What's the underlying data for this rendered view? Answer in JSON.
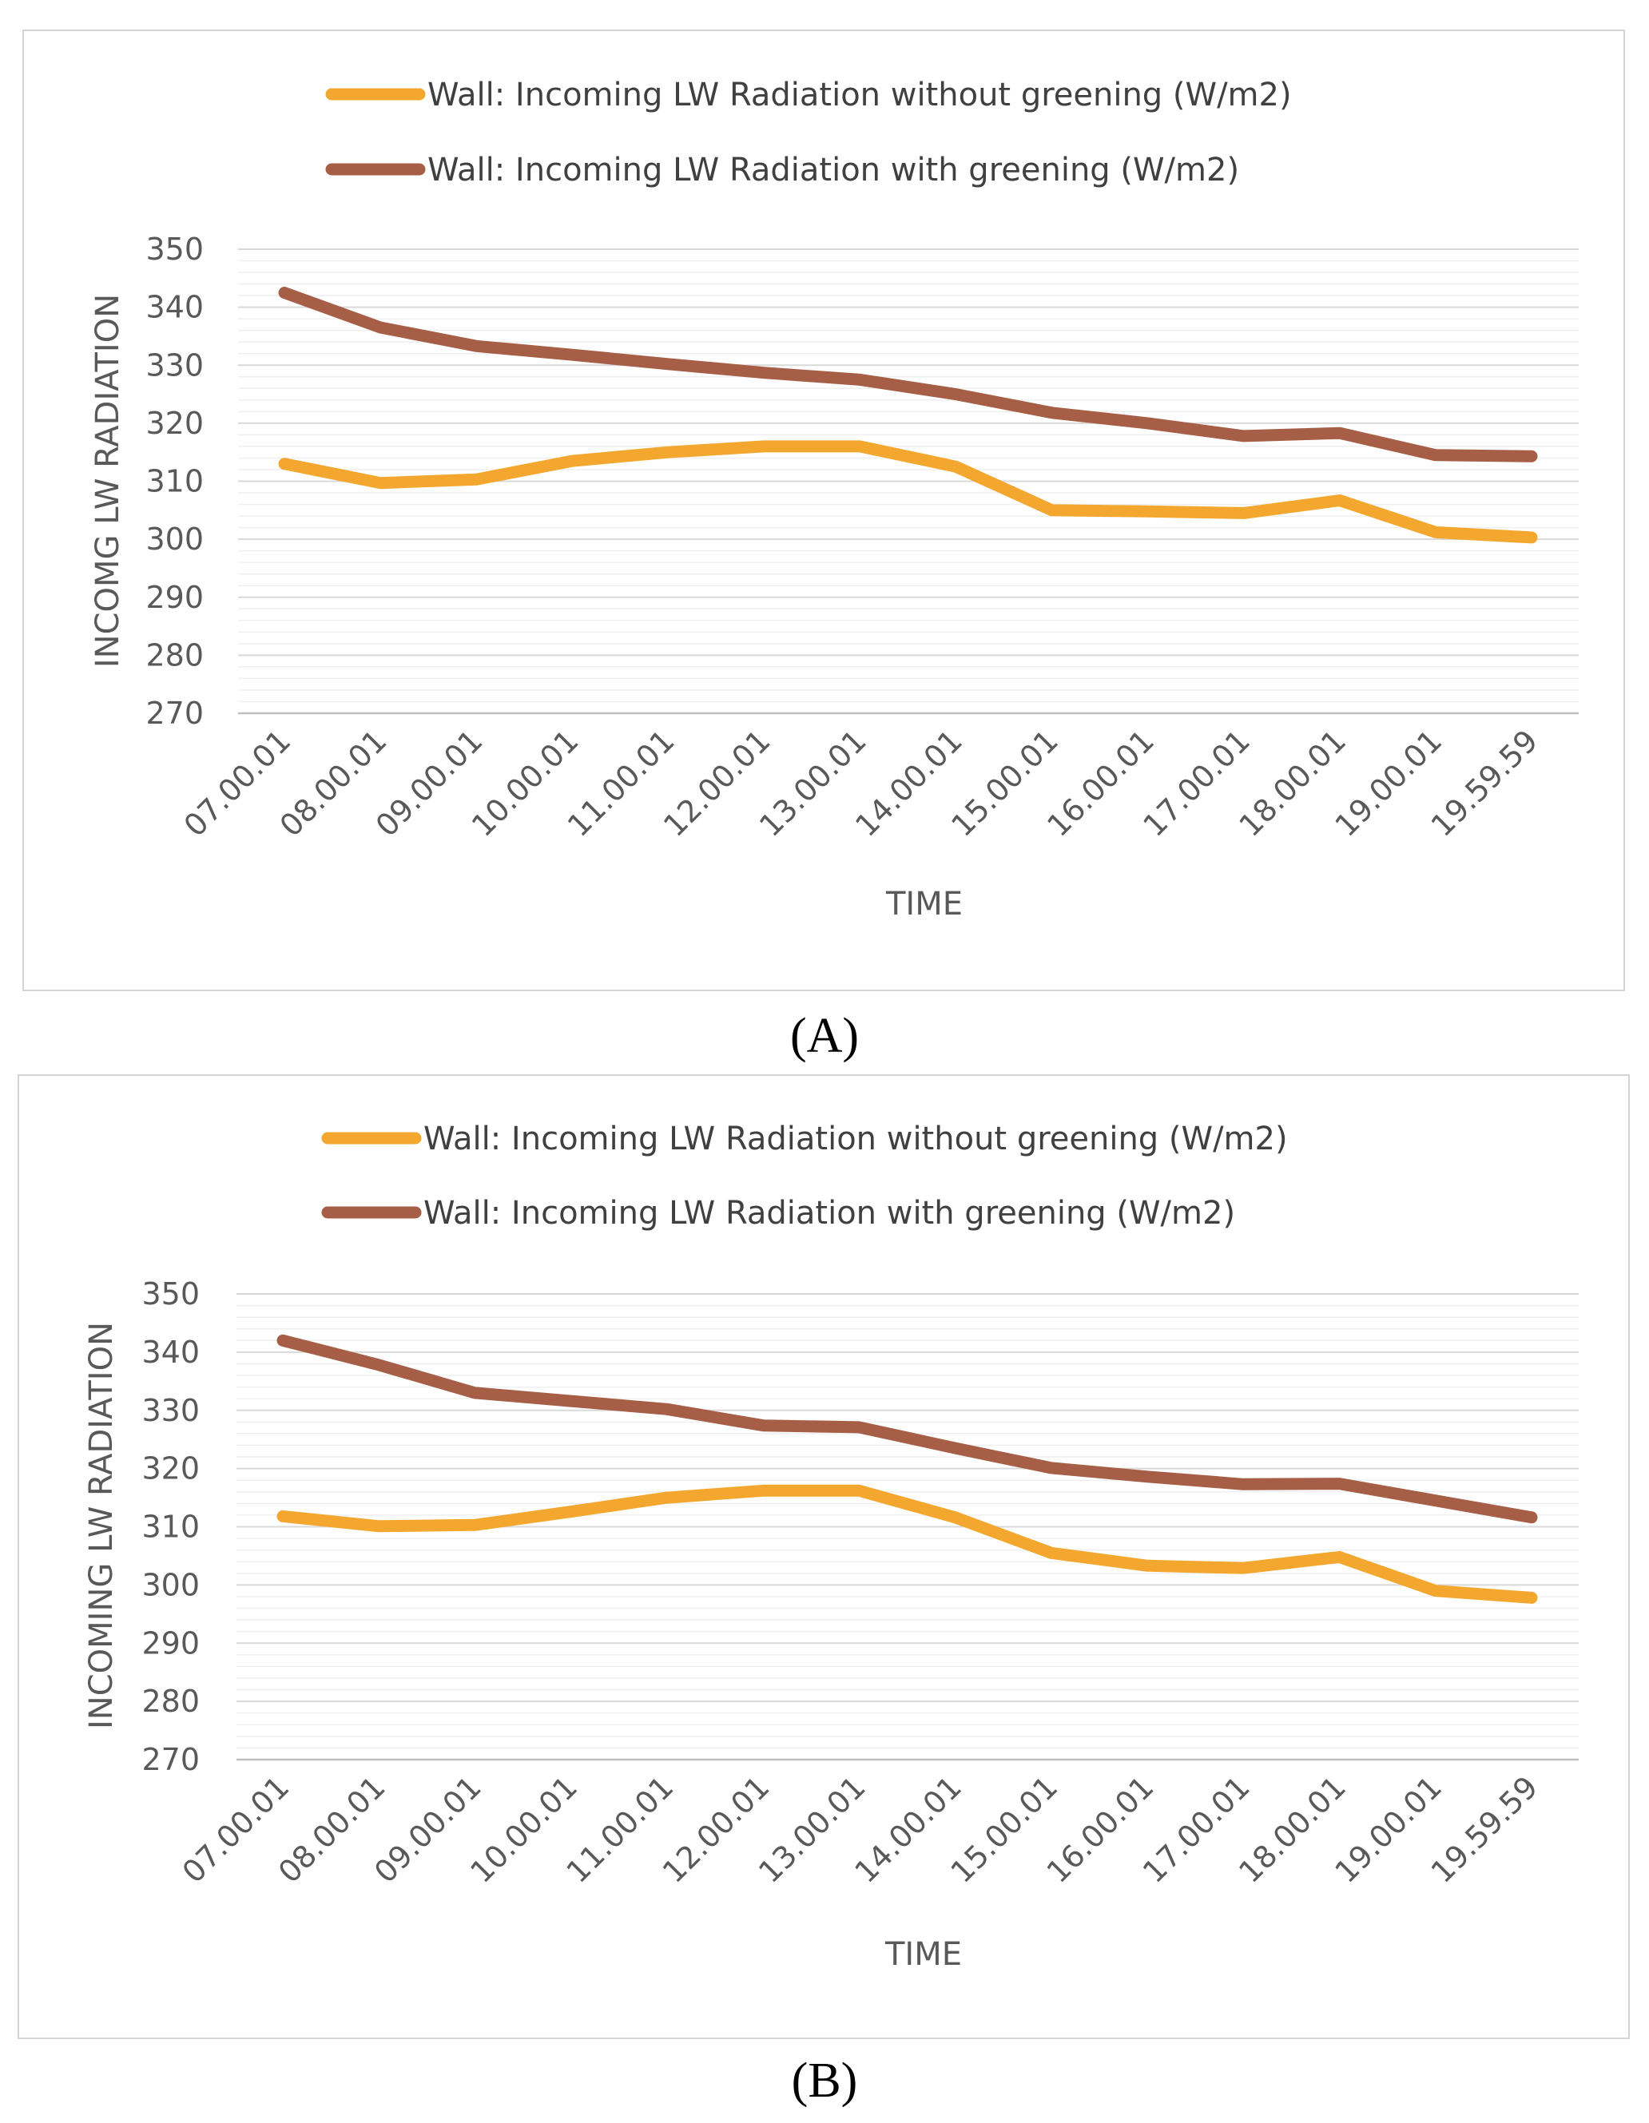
{
  "chart_data": [
    {
      "type": "line",
      "panel_label": "(A)",
      "xlabel": "TIME",
      "ylabel": "INCOMG LW RADIATION",
      "ylim": [
        270,
        350
      ],
      "yticks": [
        270,
        280,
        290,
        300,
        310,
        320,
        330,
        340,
        350
      ],
      "grid": true,
      "legend_position": "top",
      "categories": [
        "07.00.01",
        "08.00.01",
        "09.00.01",
        "10.00.01",
        "11.00.01",
        "12.00.01",
        "13.00.01",
        "14.00.01",
        "15.00.01",
        "16.00.01",
        "17.00.01",
        "18.00.01",
        "19.00.01",
        "19.59.59"
      ],
      "series": [
        {
          "name": "Wall: Incoming LW Radiation without greening  (W/m2)",
          "color": "#F4A72E",
          "values": [
            313,
            309.7,
            310.3,
            313.5,
            315,
            316,
            316,
            312.5,
            305,
            304.8,
            304.5,
            306.7,
            301.2,
            300.3
          ]
        },
        {
          "name": "Wall: Incoming LW Radiation with greening  (W/m2)",
          "color": "#A65F46",
          "values": [
            342.5,
            336.5,
            333.3,
            331.8,
            330.2,
            328.7,
            327.5,
            325,
            321.8,
            320,
            317.8,
            318.3,
            314.5,
            314.3
          ]
        }
      ]
    },
    {
      "type": "line",
      "panel_label": "(B)",
      "xlabel": "TIME",
      "ylabel": "INCOMING LW RADIATION",
      "ylim": [
        270,
        350
      ],
      "yticks": [
        270,
        280,
        290,
        300,
        310,
        320,
        330,
        340,
        350
      ],
      "grid": true,
      "legend_position": "top",
      "categories": [
        "07.00.01",
        "08.00.01",
        "09.00.01",
        "10.00.01",
        "11.00.01",
        "12.00.01",
        "13.00.01",
        "14.00.01",
        "15.00.01",
        "16.00.01",
        "17.00.01",
        "18.00.01",
        "19.00.01",
        "19.59.59"
      ],
      "series": [
        {
          "name": "Wall: Incoming LW Radiation without greening  (W/m2)",
          "color": "#F4A72E",
          "values": [
            311.8,
            310.1,
            310.3,
            312.6,
            315,
            316.2,
            316.2,
            311.6,
            305.5,
            303.3,
            302.9,
            304.8,
            299,
            297.8
          ]
        },
        {
          "name": "Wall: Incoming LW Radiation with greening (W/m2)",
          "color": "#A65F46",
          "values": [
            342,
            337.8,
            333,
            331.6,
            330.2,
            327.4,
            327.1,
            323.5,
            320.1,
            318.6,
            317.3,
            317.4,
            314.5,
            311.6
          ]
        }
      ]
    }
  ]
}
